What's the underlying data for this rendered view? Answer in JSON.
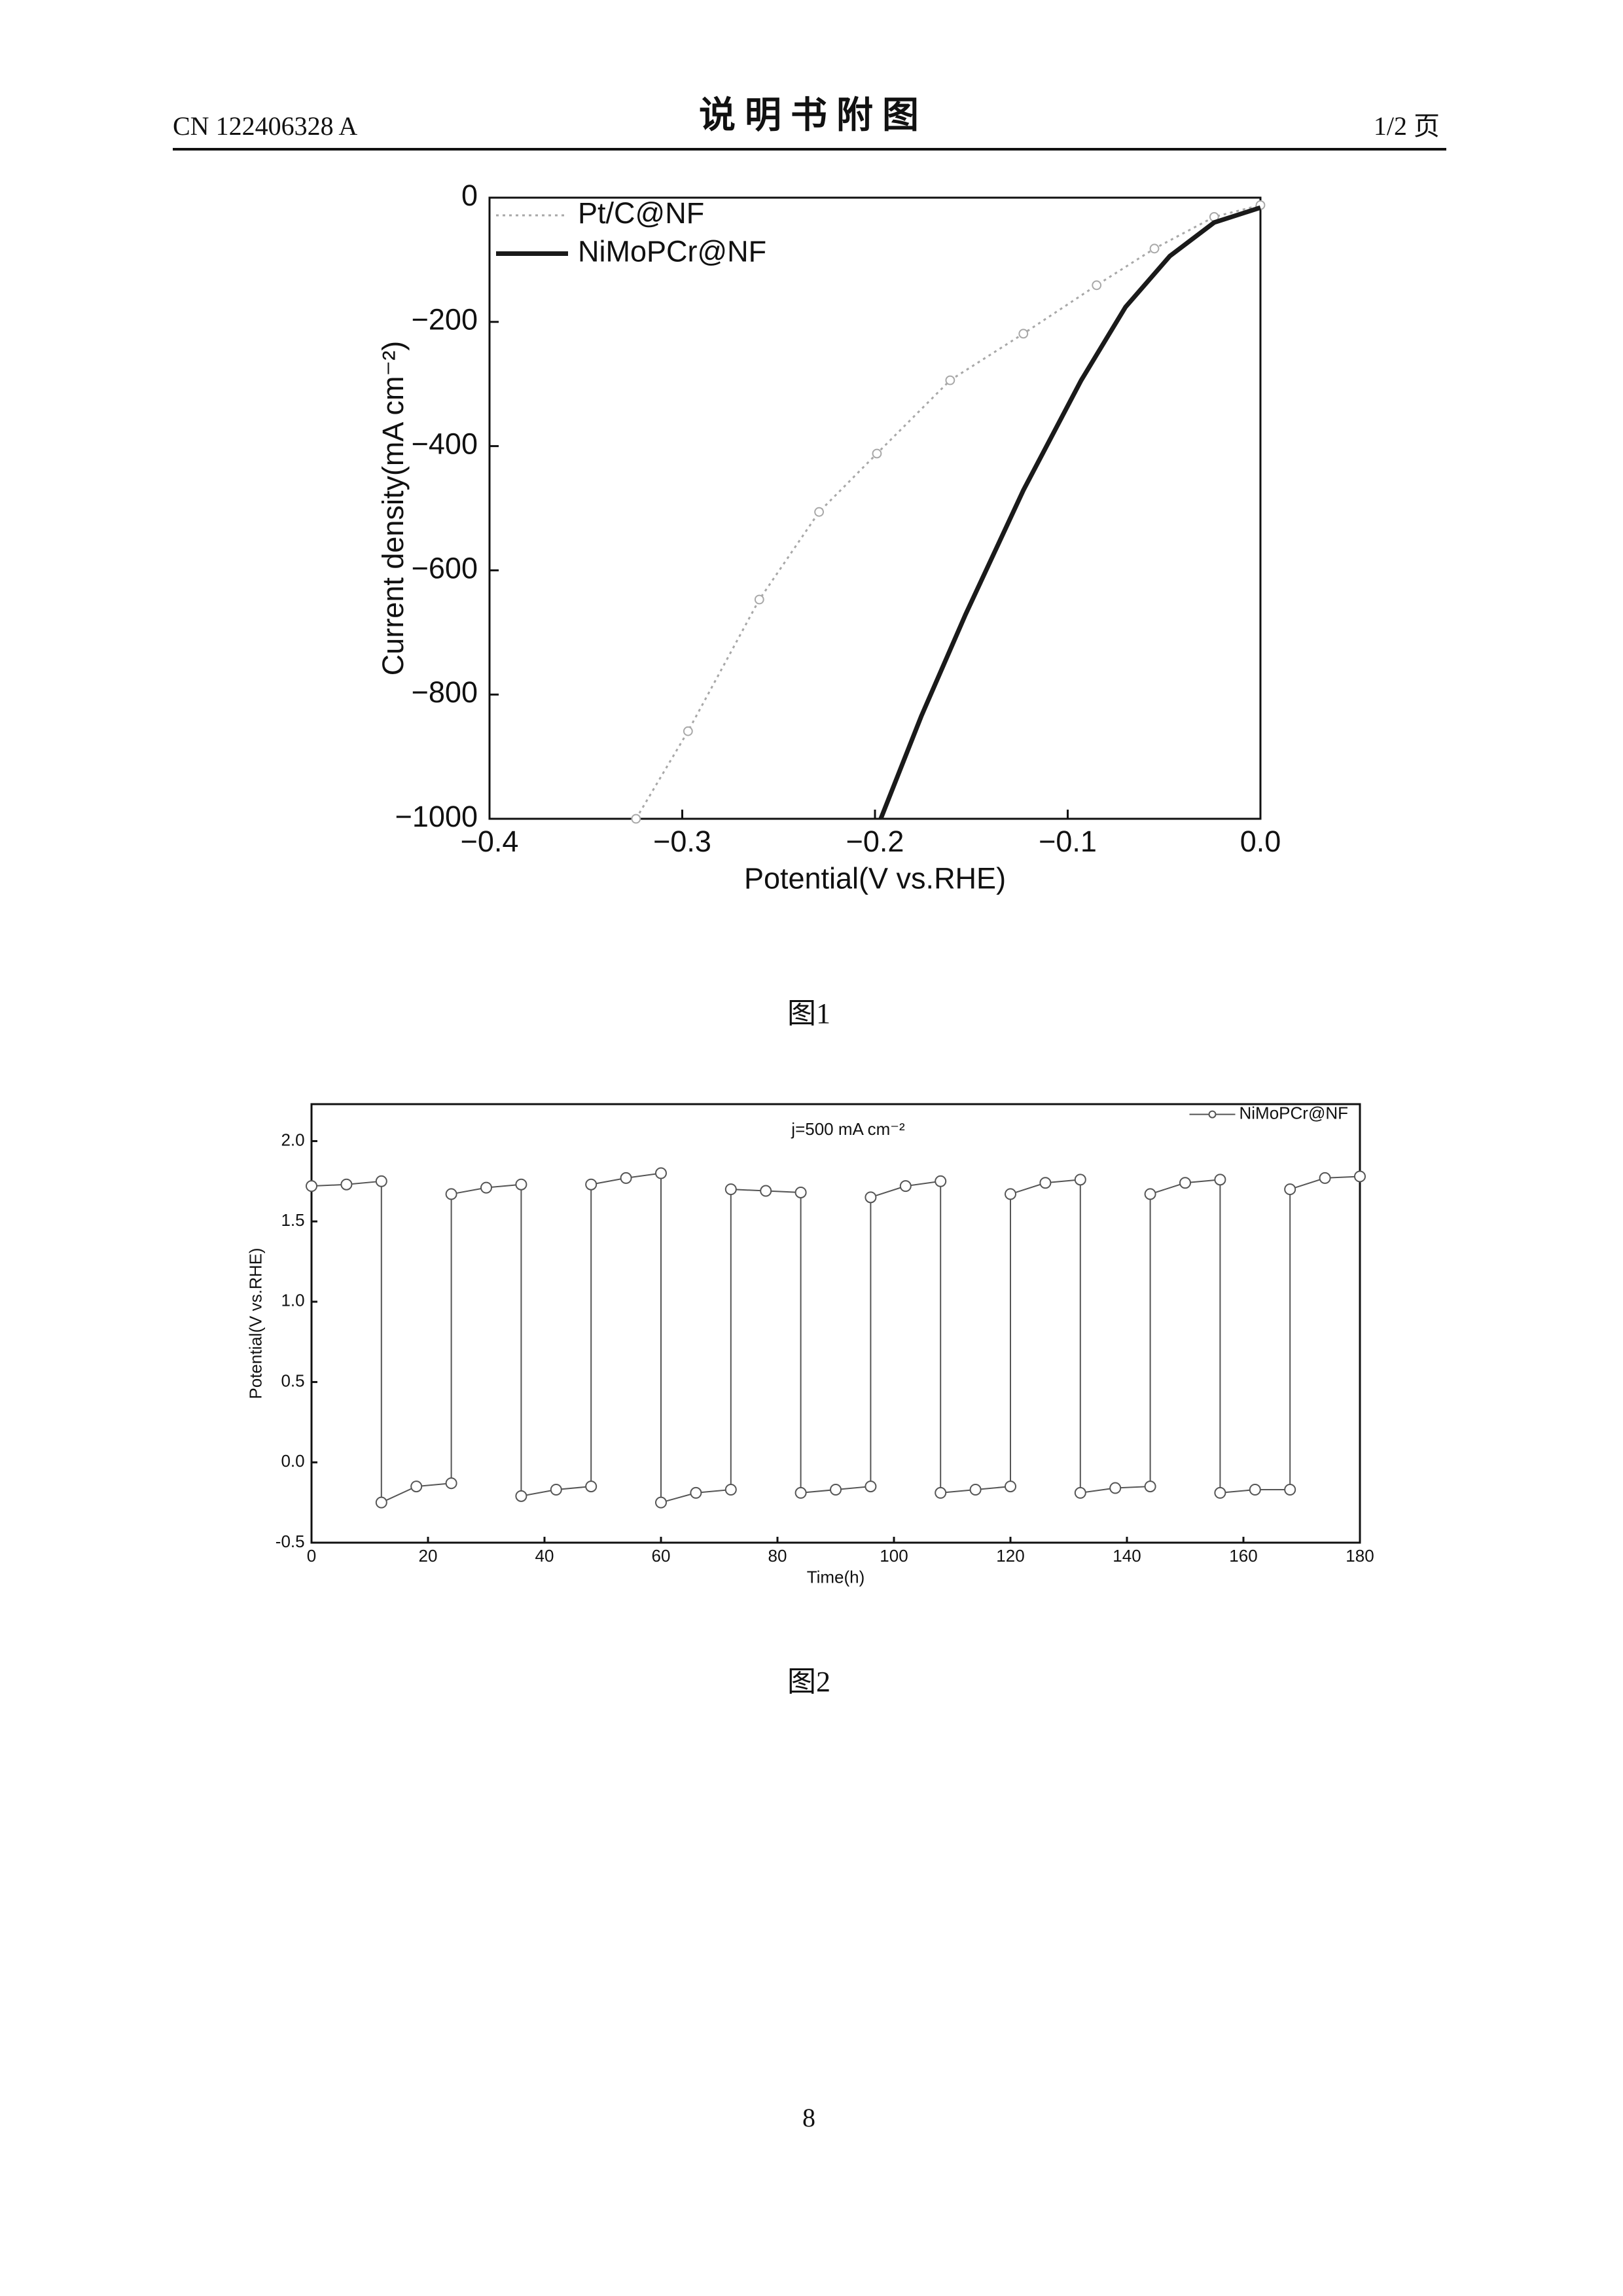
{
  "header": {
    "left": "CN 122406328 A",
    "title": "说 明 书 附 图",
    "right": "1/2 页"
  },
  "chart_data": [
    {
      "type": "line",
      "caption": "图1",
      "xlabel": "Potential(V vs.RHE)",
      "ylabel": "Current density(mA cm⁻²)",
      "xlim": [
        -0.4,
        0.0
      ],
      "ylim": [
        -1000,
        0
      ],
      "xticks": [
        {
          "value": -0.4,
          "label": "−0.4"
        },
        {
          "value": -0.3,
          "label": "−0.3"
        },
        {
          "value": -0.2,
          "label": "−0.2"
        },
        {
          "value": -0.1,
          "label": "−0.1"
        },
        {
          "value": 0,
          "label": "0.0"
        }
      ],
      "yticks": [
        0,
        {
          "value": -200,
          "label": "−200"
        },
        {
          "value": -400,
          "label": "−400"
        },
        {
          "value": -600,
          "label": "−600"
        },
        {
          "value": -800,
          "label": "−800"
        },
        {
          "value": -1000,
          "label": "−1000"
        }
      ],
      "legend": "upper left",
      "series": [
        {
          "name": "Pt/C@NF",
          "color": "#a8a8a8",
          "marker": "circle",
          "x": [
            -0.324,
            -0.297,
            -0.26,
            -0.229,
            -0.199,
            -0.161,
            -0.123,
            -0.085,
            -0.055,
            -0.024,
            0.0
          ],
          "values": [
            -1000,
            -859,
            -647,
            -506,
            -412,
            -294,
            -219,
            -141,
            -82,
            -31,
            -12
          ]
        },
        {
          "name": "NiMoPCr@NF",
          "color": "#1a1a1a",
          "x": [
            -0.197,
            -0.176,
            -0.153,
            -0.123,
            -0.093,
            -0.07,
            -0.047,
            -0.024,
            0.0
          ],
          "values": [
            -1000,
            -835,
            -671,
            -471,
            -294,
            -176,
            -94,
            -40,
            -16
          ]
        }
      ]
    },
    {
      "type": "line",
      "caption": "图2",
      "xlabel": "Time(h)",
      "ylabel": "Potential(V vs.RHE)",
      "annotation": "j=500 mA cm⁻²",
      "xlim": [
        0,
        180
      ],
      "ylim": [
        -0.5,
        2.23
      ],
      "xticks": [
        0,
        20,
        40,
        60,
        80,
        100,
        120,
        140,
        160,
        180
      ],
      "yticks": [
        -0.5,
        {
          "value": 0,
          "label": "0.0"
        },
        0.5,
        {
          "value": 1,
          "label": "1.0"
        },
        1.5,
        {
          "value": 2,
          "label": "2.0"
        }
      ],
      "legend": "upper right",
      "series": [
        {
          "name": "NiMoPCr@NF",
          "color": "#555555",
          "marker": "circle",
          "x": [
            0,
            6,
            12,
            12,
            18,
            24,
            24,
            30,
            36,
            36,
            42,
            48,
            48,
            54,
            60,
            60,
            66,
            72,
            72,
            78,
            84,
            84,
            90,
            96,
            96,
            102,
            108,
            108,
            114,
            120,
            120,
            126,
            132,
            132,
            138,
            144,
            144,
            150,
            156,
            156,
            162,
            168,
            168,
            174,
            180
          ],
          "values": [
            1.72,
            1.73,
            1.75,
            -0.25,
            -0.15,
            -0.13,
            1.67,
            1.71,
            1.73,
            -0.21,
            -0.17,
            -0.15,
            1.73,
            1.77,
            1.8,
            -0.25,
            -0.19,
            -0.17,
            1.7,
            1.69,
            1.68,
            -0.19,
            -0.17,
            -0.15,
            1.65,
            1.72,
            1.75,
            -0.19,
            -0.17,
            -0.15,
            1.67,
            1.74,
            1.76,
            -0.19,
            -0.16,
            -0.15,
            1.67,
            1.74,
            1.76,
            -0.19,
            -0.17,
            -0.17,
            1.7,
            1.77,
            1.78
          ]
        }
      ]
    }
  ],
  "footer": {
    "page": "8"
  }
}
